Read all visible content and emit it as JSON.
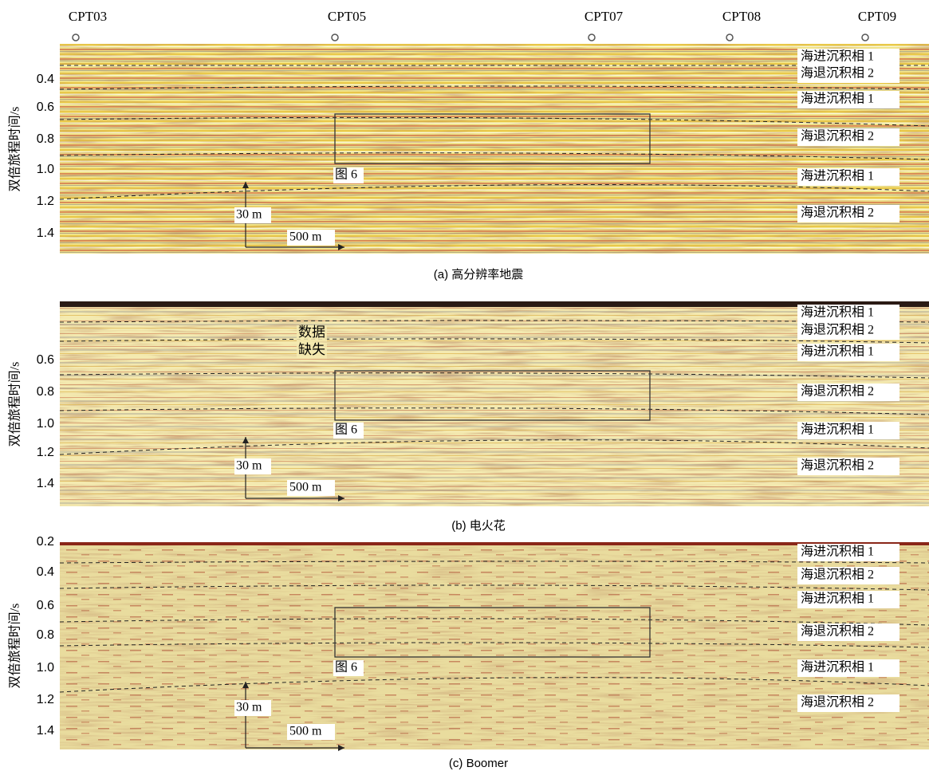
{
  "cpt_labels": [
    "CPT03",
    "CPT05",
    "CPT07",
    "CPT08",
    "CPT09"
  ],
  "panels": [
    {
      "caption": "(a) 高分辨率地震",
      "y_axis_label": "双倍旅程时间/s",
      "yticks": [
        "0.4",
        "0.6",
        "0.8",
        "1.0",
        "1.2",
        "1.4"
      ],
      "facies": [
        "海进沉积相 1",
        "海退沉积相 2",
        "海进沉积相 1",
        "海退沉积相 2",
        "海进沉积相 1",
        "海退沉积相 2"
      ],
      "box_label": "图 6",
      "vertical_scale": "30 m",
      "horizontal_scale": "500 m"
    },
    {
      "caption": "(b) 电火花",
      "y_axis_label": "双倍旅程时间/s",
      "yticks": [
        "0.6",
        "0.8",
        "1.0",
        "1.2",
        "1.4"
      ],
      "facies": [
        "海进沉积相 1",
        "海退沉积相 2",
        "海进沉积相 1",
        "海退沉积相 2",
        "海进沉积相 1",
        "海退沉积相 2"
      ],
      "box_label": "图 6",
      "vertical_scale": "30 m",
      "horizontal_scale": "500 m",
      "data_gap_label": [
        "数据",
        "缺失"
      ]
    },
    {
      "caption": "(c) Boomer",
      "y_axis_label": "双倍旅程时间/s",
      "yticks": [
        "0.2",
        "0.4",
        "0.6",
        "0.8",
        "1.0",
        "1.2",
        "1.4"
      ],
      "facies": [
        "海进沉积相 1",
        "海退沉积相 2",
        "海进沉积相 1",
        "海退沉积相 2",
        "海进沉积相 1",
        "海退沉积相 2"
      ],
      "box_label": "图 6",
      "vertical_scale": "30 m",
      "horizontal_scale": "500 m"
    }
  ]
}
